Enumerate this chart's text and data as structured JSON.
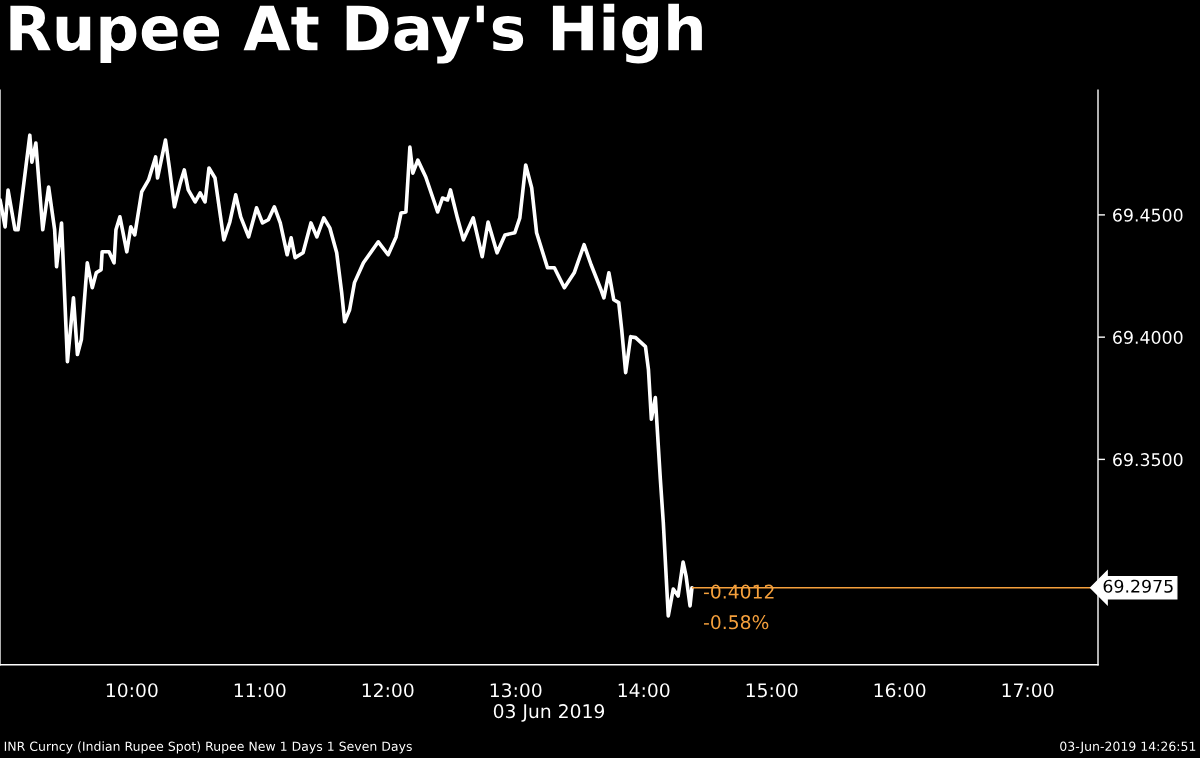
{
  "chart_data": {
    "type": "line",
    "title": "Rupee At Day's High",
    "xlabel": "03 Jun 2019",
    "x": [
      8.971,
      9.01,
      9.033,
      9.087,
      9.111,
      9.203,
      9.219,
      9.25,
      9.304,
      9.35,
      9.397,
      9.412,
      9.451,
      9.497,
      9.544,
      9.575,
      9.606,
      9.652,
      9.691,
      9.722,
      9.76,
      9.768,
      9.822,
      9.861,
      9.876,
      9.907,
      9.961,
      9.992,
      10.023,
      10.077,
      10.131,
      10.186,
      10.201,
      10.263,
      10.294,
      10.333,
      10.379,
      10.41,
      10.441,
      10.495,
      10.534,
      10.572,
      10.603,
      10.65,
      10.719,
      10.766,
      10.812,
      10.851,
      10.913,
      10.975,
      11.021,
      11.067,
      11.114,
      11.16,
      11.214,
      11.245,
      11.276,
      11.338,
      11.4,
      11.446,
      11.5,
      11.547,
      11.601,
      11.64,
      11.663,
      11.702,
      11.74,
      11.81,
      11.926,
      12.003,
      12.065,
      12.104,
      12.142,
      12.173,
      12.196,
      12.235,
      12.297,
      12.39,
      12.428,
      12.467,
      12.49,
      12.544,
      12.591,
      12.668,
      12.738,
      12.784,
      12.854,
      12.916,
      12.993,
      13.032,
      13.078,
      13.125,
      13.163,
      13.248,
      13.302,
      13.38,
      13.457,
      13.534,
      13.589,
      13.666,
      13.689,
      13.728,
      13.766,
      13.805,
      13.828,
      13.859,
      13.898,
      13.937,
      14.014,
      14.037,
      14.06,
      14.091,
      14.13,
      14.153,
      14.192,
      14.231,
      14.269,
      14.308,
      14.331,
      14.362,
      14.377
    ],
    "series": [
      {
        "color": "#ffffff",
        "values": [
          69.4561,
          69.4451,
          69.4602,
          69.4439,
          69.4439,
          69.4826,
          69.4716,
          69.4794,
          69.4439,
          69.4614,
          69.4439,
          69.4288,
          69.4467,
          69.39,
          69.4161,
          69.3929,
          69.399,
          69.4304,
          69.4202,
          69.4263,
          69.4276,
          69.4349,
          69.4349,
          69.4304,
          69.4439,
          69.4492,
          69.4349,
          69.4451,
          69.4418,
          69.4594,
          69.4643,
          69.4737,
          69.4651,
          69.4806,
          69.4692,
          69.4533,
          69.4631,
          69.4684,
          69.4602,
          69.4553,
          69.459,
          69.4553,
          69.4692,
          69.4651,
          69.4398,
          69.4471,
          69.4582,
          69.4492,
          69.441,
          69.4529,
          69.4467,
          69.448,
          69.4533,
          69.4467,
          69.4337,
          69.4406,
          69.4325,
          69.4345,
          69.4467,
          69.441,
          69.4488,
          69.4447,
          69.4345,
          69.4182,
          69.4063,
          69.4112,
          69.4223,
          69.4304,
          69.439,
          69.4337,
          69.441,
          69.4508,
          69.4512,
          69.4777,
          69.4671,
          69.4724,
          69.4655,
          69.4512,
          69.4569,
          69.4561,
          69.4602,
          69.4488,
          69.4398,
          69.4488,
          69.4329,
          69.4471,
          69.4345,
          69.4418,
          69.4427,
          69.4488,
          69.4704,
          69.461,
          69.4427,
          69.4284,
          69.4284,
          69.4202,
          69.4263,
          69.4378,
          69.4296,
          69.4194,
          69.4161,
          69.4263,
          69.4153,
          69.4141,
          69.4031,
          69.3855,
          69.4002,
          69.3998,
          69.3961,
          69.3868,
          69.3664,
          69.3753,
          69.3419,
          69.3243,
          69.286,
          69.297,
          69.2941,
          69.308,
          69.3023,
          69.2901,
          69.2975
        ]
      }
    ],
    "xlim": [
      8.97,
      17.55
    ],
    "ylim": [
      69.266,
      69.501
    ],
    "xticks": [
      {
        "value": 10,
        "label": "10:00"
      },
      {
        "value": 11,
        "label": "11:00"
      },
      {
        "value": 12,
        "label": "12:00"
      },
      {
        "value": 13,
        "label": "13:00"
      },
      {
        "value": 14,
        "label": "14:00"
      },
      {
        "value": 15,
        "label": "15:00"
      },
      {
        "value": 16,
        "label": "16:00"
      },
      {
        "value": 17,
        "label": "17:00"
      }
    ],
    "yticks": [
      {
        "value": 69.35,
        "label": "69.3500"
      },
      {
        "value": 69.4,
        "label": "69.4000"
      },
      {
        "value": 69.45,
        "label": "69.4500"
      }
    ],
    "ref_lines": [
      {
        "axis": "y",
        "value": 69.2975,
        "label": "69.2975",
        "color": "#f5a03c"
      }
    ],
    "annotations": [
      {
        "text": "-0.4012",
        "x": 14.377,
        "y": 69.2975
      },
      {
        "text": "-0.58%",
        "x": 14.377,
        "y": 69.2975
      },
      "INR Curncy (Indian Rupee Spot) Rupee New 1 Days 1 Seven Days",
      "03-Jun-2019 14:26:51"
    ],
    "grid": false,
    "legend": false,
    "marker": "none",
    "line_style": "solid"
  }
}
